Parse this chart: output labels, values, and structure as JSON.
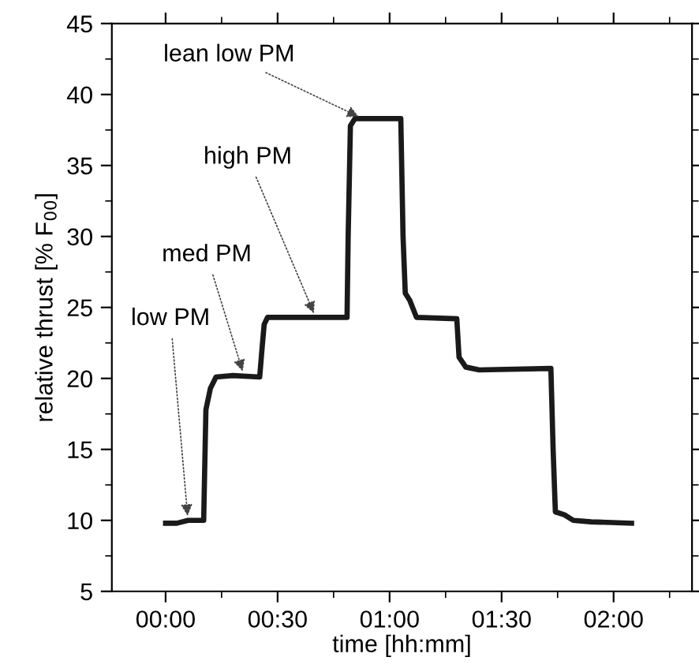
{
  "chart_data": {
    "type": "line",
    "xlabel": "time [hh:mm]",
    "ylabel": "relative thrust [% F$_{00}$]",
    "xlim": [
      -0.24,
      2.35
    ],
    "ylim": [
      5,
      45
    ],
    "xticks": [
      {
        "value": 0,
        "label": "00:00"
      },
      {
        "value": 0.5,
        "label": "00:30"
      },
      {
        "value": 1,
        "label": "01:00"
      },
      {
        "value": 1.5,
        "label": "01:30"
      },
      {
        "value": 2,
        "label": "02:00"
      }
    ],
    "yticks": [
      5,
      10,
      15,
      20,
      25,
      30,
      35,
      40,
      45
    ],
    "grid": false,
    "legend": false,
    "marker": "none",
    "line_style": "solid",
    "series": [
      {
        "color": "#1a1a1a",
        "x": [
          0.0,
          0.05,
          0.1,
          0.17,
          0.175,
          0.18,
          0.2,
          0.225,
          0.3,
          0.42,
          0.43,
          0.44,
          0.455,
          0.6,
          0.81,
          0.815,
          0.825,
          0.845,
          1.0,
          1.05,
          1.06,
          1.07,
          1.09,
          1.12,
          1.3,
          1.31,
          1.34,
          1.4,
          1.72,
          1.73,
          1.74,
          1.78,
          1.82,
          1.9,
          2.08
        ],
        "values": [
          9.8,
          9.8,
          10.0,
          10.0,
          14,
          17.8,
          19.3,
          20.1,
          20.2,
          20.1,
          22,
          23.8,
          24.3,
          24.3,
          24.3,
          30,
          37.8,
          38.3,
          38.3,
          38.3,
          30,
          26,
          25.5,
          24.3,
          24.2,
          21.5,
          20.8,
          20.6,
          20.7,
          15,
          10.6,
          10.4,
          10.0,
          9.9,
          9.8
        ]
      }
    ],
    "annotations": [
      {
        "text": "low PM",
        "x": 0.1,
        "y": 10.0
      },
      {
        "text": "med PM",
        "x": 0.35,
        "y": 20.2
      },
      {
        "text": "high PM",
        "x": 0.67,
        "y": 24.3
      },
      {
        "text": "lean low PM",
        "x": 0.88,
        "y": 38.3
      }
    ]
  }
}
